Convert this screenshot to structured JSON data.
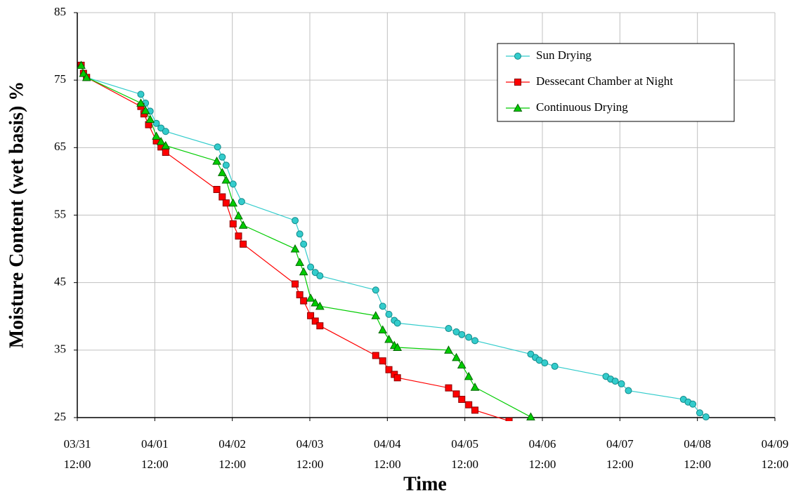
{
  "chart_data": {
    "type": "line",
    "x_label": "Time",
    "y_label": "Moisture Content (wet basis) %",
    "xlim": [
      0,
      9
    ],
    "xticks": [
      {
        "value": 0,
        "label": "03/31 12:00"
      },
      {
        "value": 1,
        "label": "04/01 12:00"
      },
      {
        "value": 2,
        "label": "04/02 12:00"
      },
      {
        "value": 3,
        "label": "04/03 12:00"
      },
      {
        "value": 4,
        "label": "04/04 12:00"
      },
      {
        "value": 5,
        "label": "04/05 12:00"
      },
      {
        "value": 6,
        "label": "04/06 12:00"
      },
      {
        "value": 7,
        "label": "04/07 12:00"
      },
      {
        "value": 8,
        "label": "04/08 12:00"
      },
      {
        "value": 9,
        "label": "04/09 12:00"
      }
    ],
    "ylim": [
      25,
      85
    ],
    "yticks": [
      25,
      35,
      45,
      55,
      65,
      75,
      85
    ],
    "grid": true,
    "legend": "upper right",
    "series": [
      {
        "name": "Sun Drying",
        "color": "#33cccc",
        "marker": "circle",
        "x": [
          0.05,
          0.08,
          0.12,
          0.82,
          0.88,
          0.94,
          1.02,
          1.08,
          1.14,
          1.81,
          1.87,
          1.92,
          2.01,
          2.12,
          2.81,
          2.87,
          2.92,
          3.01,
          3.07,
          3.13,
          3.85,
          3.94,
          4.02,
          4.09,
          4.13,
          4.79,
          4.89,
          4.96,
          5.05,
          5.13,
          5.85,
          5.91,
          5.96,
          6.03,
          6.16,
          6.82,
          6.88,
          6.94,
          7.02,
          7.11,
          7.82,
          7.88,
          7.94,
          8.03,
          8.11
        ],
        "values": [
          77.2,
          76.0,
          75.4,
          72.9,
          71.6,
          70.4,
          68.6,
          67.9,
          67.4,
          65.1,
          63.6,
          62.4,
          59.6,
          57.0,
          54.2,
          52.2,
          50.7,
          47.3,
          46.5,
          46.0,
          43.9,
          41.5,
          40.3,
          39.4,
          39.0,
          38.2,
          37.7,
          37.3,
          36.9,
          36.4,
          34.4,
          33.9,
          33.5,
          33.1,
          32.6,
          31.1,
          30.7,
          30.4,
          30.0,
          29.0,
          27.7,
          27.3,
          27.0,
          25.7,
          25.1
        ]
      },
      {
        "name": "Dessecant Chamber at Night",
        "color": "#ff0000",
        "marker": "square",
        "x": [
          0.05,
          0.08,
          0.12,
          0.82,
          0.86,
          0.92,
          1.02,
          1.08,
          1.14,
          1.8,
          1.87,
          1.92,
          2.01,
          2.08,
          2.14,
          2.81,
          2.87,
          2.92,
          3.01,
          3.07,
          3.13,
          3.85,
          3.94,
          4.02,
          4.09,
          4.13,
          4.79,
          4.89,
          4.96,
          5.05,
          5.13,
          5.57
        ],
        "values": [
          77.2,
          76.0,
          75.4,
          71.1,
          70.0,
          68.4,
          66.0,
          65.1,
          64.3,
          58.8,
          57.7,
          56.8,
          53.7,
          51.9,
          50.7,
          44.8,
          43.2,
          42.3,
          40.1,
          39.3,
          38.6,
          34.2,
          33.4,
          32.1,
          31.4,
          30.9,
          29.4,
          28.5,
          27.7,
          26.9,
          26.1,
          24.5
        ]
      },
      {
        "name": "Continuous Drying",
        "color": "#00cc00",
        "marker": "triangle",
        "x": [
          0.05,
          0.08,
          0.12,
          0.82,
          0.88,
          0.94,
          1.02,
          1.08,
          1.14,
          1.8,
          1.87,
          1.92,
          2.01,
          2.08,
          2.14,
          2.81,
          2.87,
          2.92,
          3.01,
          3.07,
          3.13,
          3.85,
          3.94,
          4.02,
          4.09,
          4.13,
          4.79,
          4.89,
          4.96,
          5.05,
          5.13,
          5.85
        ],
        "values": [
          77.2,
          76.0,
          75.4,
          71.6,
          70.5,
          69.2,
          66.7,
          65.9,
          65.3,
          63.0,
          61.3,
          60.2,
          56.8,
          54.9,
          53.5,
          50.0,
          48.0,
          46.6,
          42.7,
          42.0,
          41.5,
          40.1,
          38.0,
          36.6,
          35.7,
          35.4,
          35.0,
          33.9,
          32.8,
          31.1,
          29.5,
          25.1
        ]
      }
    ]
  }
}
